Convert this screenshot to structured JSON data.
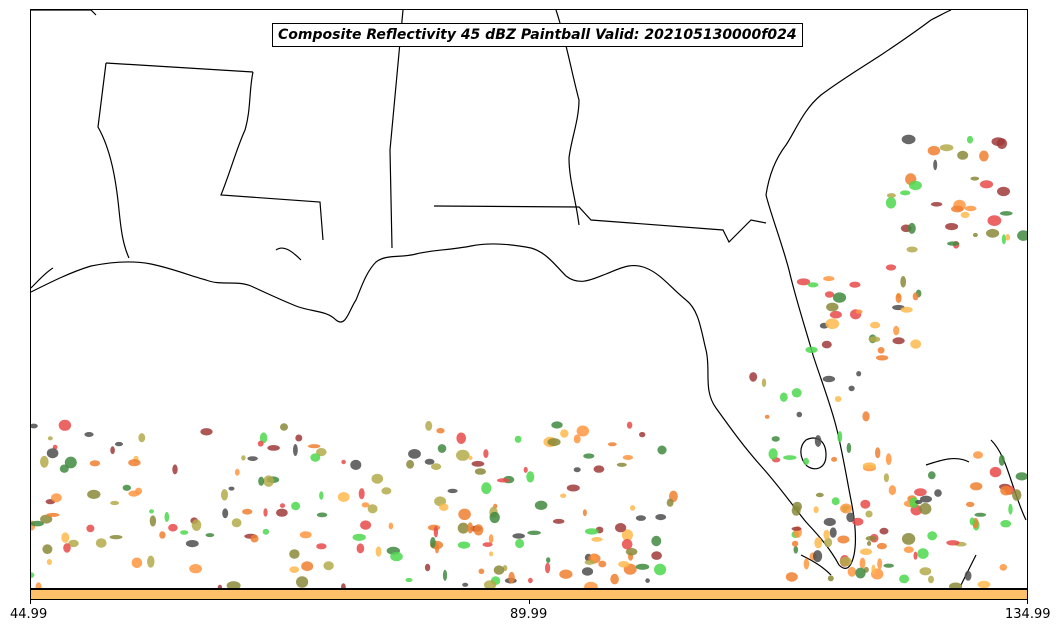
{
  "title": "Composite Reflectivity 45 dBZ Paintball Valid: 202105130000f024",
  "colorbar": {
    "color": "#ffc06a",
    "ticks": [
      "44.99",
      "89.99",
      "134.99"
    ]
  },
  "paint_colors": [
    "#e84a4a",
    "#3f8a3f",
    "#4d4d4d",
    "#a03a3a",
    "#ff9540",
    "#b3aa4a",
    "#ffb84d",
    "#4cd84c",
    "#8a8a3a",
    "#f07f30"
  ]
}
